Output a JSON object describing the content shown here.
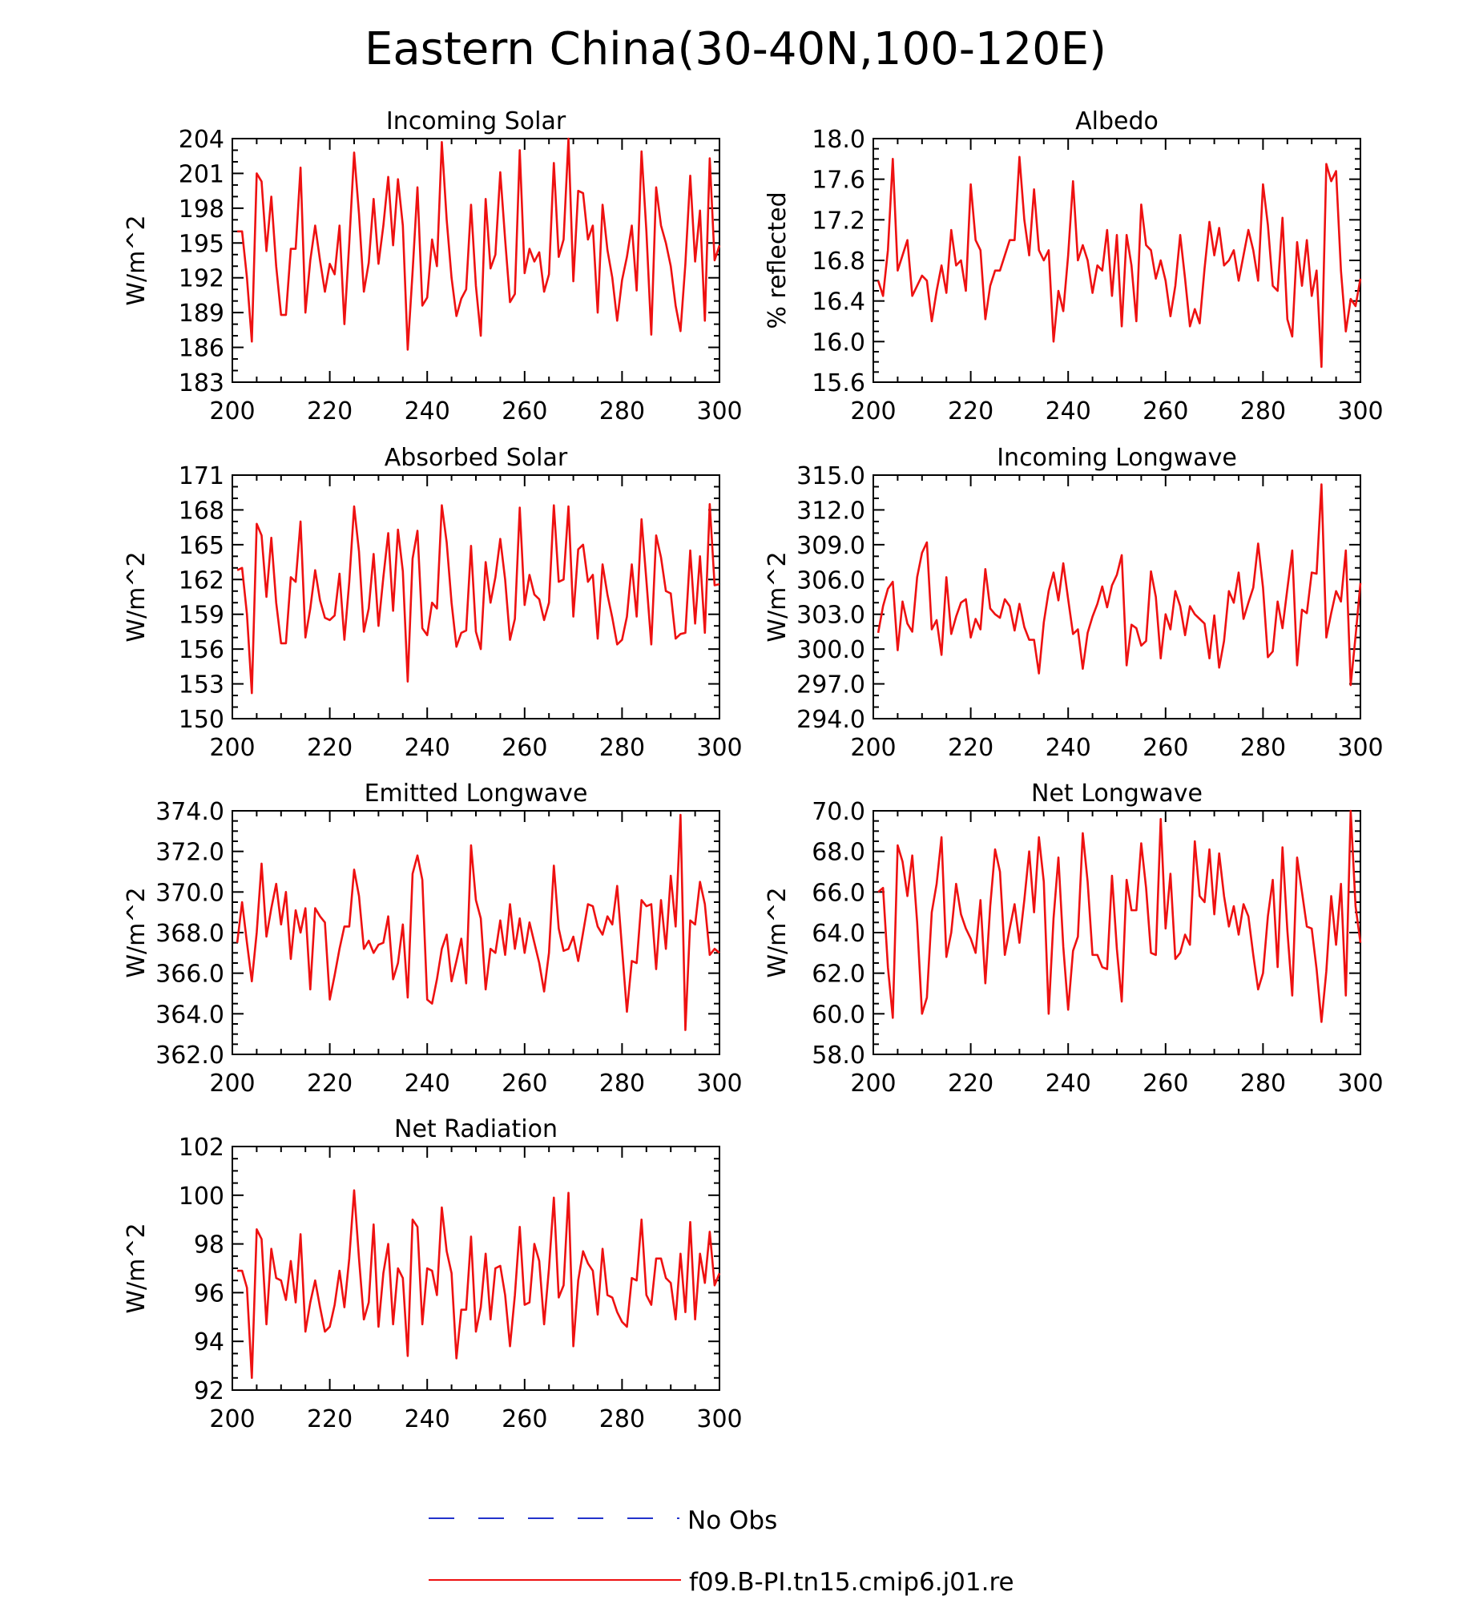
{
  "figure": {
    "title": "Eastern China(30-40N,100-120E)"
  },
  "legend": {
    "items": [
      {
        "label": "No Obs",
        "color": "#2233cc",
        "dash": true
      },
      {
        "label": "f09.B-PI.tn15.cmip6.j01.re",
        "color": "#ee1111",
        "dash": false
      }
    ]
  },
  "chart_data": [
    {
      "type": "line",
      "title": "Incoming Solar",
      "ylabel": "W/m^2",
      "xlim": [
        200,
        300
      ],
      "ylim": [
        183,
        204
      ],
      "xticks": [
        200,
        220,
        240,
        260,
        280,
        300
      ],
      "yticks": [
        183,
        186,
        189,
        192,
        195,
        198,
        201,
        204
      ],
      "ytick_labels": [
        "183",
        "186",
        "189",
        "192",
        "195",
        "198",
        "201",
        "204"
      ],
      "x_start": 201,
      "series": [
        {
          "color": "#ee1111",
          "values": [
            196.0,
            196.0,
            192.0,
            186.5,
            201.0,
            200.3,
            194.3,
            199.0,
            193.0,
            188.8,
            188.8,
            194.5,
            194.5,
            201.5,
            189.0,
            193.5,
            196.5,
            193.5,
            190.8,
            193.2,
            192.3,
            196.5,
            188.0,
            195.0,
            202.8,
            197.5,
            190.8,
            193.3,
            198.8,
            193.2,
            196.5,
            200.7,
            194.8,
            200.5,
            196.5,
            185.8,
            192.5,
            199.8,
            189.6,
            190.3,
            195.3,
            193.0,
            203.7,
            197.0,
            192.0,
            188.7,
            190.2,
            191.0,
            198.3,
            191.3,
            187.0,
            198.8,
            192.8,
            194.0,
            201.1,
            195.3,
            189.9,
            190.6,
            203.0,
            192.4,
            194.5,
            193.4,
            194.2,
            190.8,
            192.3,
            201.9,
            193.8,
            195.3,
            204.0,
            191.7,
            199.5,
            199.3,
            195.3,
            196.5,
            189.0,
            198.3,
            194.4,
            192.0,
            188.3,
            191.8,
            193.8,
            196.5,
            190.9,
            202.9,
            196.0,
            187.1,
            199.8,
            196.5,
            195.0,
            193.0,
            189.6,
            187.4,
            193.2,
            200.8,
            193.4,
            197.8,
            188.3,
            202.3,
            193.5,
            194.8
          ]
        }
      ]
    },
    {
      "type": "line",
      "title": "Albedo",
      "ylabel": "% reflected",
      "xlim": [
        200,
        300
      ],
      "ylim": [
        15.6,
        18.0
      ],
      "xticks": [
        200,
        220,
        240,
        260,
        280,
        300
      ],
      "yticks": [
        15.6,
        16.0,
        16.4,
        16.8,
        17.2,
        17.6,
        18.0
      ],
      "ytick_labels": [
        "15.6",
        "16.0",
        "16.4",
        "16.8",
        "17.2",
        "17.6",
        "18.0"
      ],
      "x_start": 201,
      "series": [
        {
          "color": "#ee1111",
          "values": [
            16.6,
            16.45,
            16.9,
            17.8,
            16.7,
            16.85,
            17.0,
            16.45,
            16.55,
            16.65,
            16.6,
            16.2,
            16.5,
            16.75,
            16.48,
            17.1,
            16.75,
            16.8,
            16.5,
            17.55,
            17.0,
            16.9,
            16.22,
            16.55,
            16.7,
            16.7,
            16.85,
            17.0,
            17.0,
            17.82,
            17.2,
            16.85,
            17.5,
            16.9,
            16.8,
            16.9,
            16.0,
            16.5,
            16.3,
            16.85,
            17.58,
            16.8,
            16.95,
            16.8,
            16.48,
            16.75,
            16.7,
            17.1,
            16.45,
            17.05,
            16.15,
            17.05,
            16.75,
            16.2,
            17.35,
            16.95,
            16.9,
            16.62,
            16.8,
            16.6,
            16.25,
            16.55,
            17.05,
            16.62,
            16.15,
            16.32,
            16.18,
            16.72,
            17.18,
            16.85,
            17.12,
            16.75,
            16.8,
            16.9,
            16.6,
            16.85,
            17.1,
            16.9,
            16.6,
            17.55,
            17.15,
            16.55,
            16.5,
            17.22,
            16.22,
            16.05,
            16.98,
            16.55,
            17.0,
            16.45,
            16.7,
            15.75,
            17.75,
            17.58,
            17.68,
            16.7,
            16.1,
            16.42,
            16.35,
            16.62
          ]
        }
      ]
    },
    {
      "type": "line",
      "title": "Absorbed Solar",
      "ylabel": "W/m^2",
      "xlim": [
        200,
        300
      ],
      "ylim": [
        150,
        171
      ],
      "xticks": [
        200,
        220,
        240,
        260,
        280,
        300
      ],
      "yticks": [
        150,
        153,
        156,
        159,
        162,
        165,
        168,
        171
      ],
      "ytick_labels": [
        "150",
        "153",
        "156",
        "159",
        "162",
        "165",
        "168",
        "171"
      ],
      "x_start": 201,
      "series": [
        {
          "color": "#ee1111",
          "values": [
            162.8,
            163.0,
            159.0,
            152.2,
            166.8,
            165.8,
            160.5,
            165.6,
            160.0,
            156.5,
            156.5,
            162.2,
            161.8,
            167.0,
            157.0,
            159.5,
            162.8,
            160.2,
            158.7,
            158.5,
            158.9,
            162.5,
            156.8,
            161.8,
            168.3,
            164.4,
            157.5,
            159.5,
            164.2,
            158.0,
            162.2,
            166.0,
            159.3,
            166.3,
            162.7,
            153.2,
            163.8,
            166.2,
            157.8,
            157.2,
            160.0,
            159.5,
            168.4,
            165.2,
            160.0,
            156.2,
            157.4,
            157.6,
            164.9,
            157.5,
            156.0,
            163.5,
            160.0,
            162.2,
            165.5,
            162.0,
            156.8,
            158.6,
            168.2,
            159.8,
            162.4,
            160.7,
            160.3,
            158.5,
            160.0,
            168.4,
            161.8,
            162.0,
            168.3,
            158.8,
            164.6,
            165.0,
            161.8,
            162.4,
            156.9,
            163.3,
            160.7,
            158.7,
            156.4,
            156.8,
            158.8,
            163.3,
            158.8,
            167.2,
            161.9,
            156.4,
            165.8,
            163.9,
            161.0,
            160.8,
            156.9,
            157.3,
            157.4,
            164.5,
            158.2,
            164.0,
            157.4,
            168.5,
            161.5,
            161.6
          ]
        }
      ]
    },
    {
      "type": "line",
      "title": "Incoming Longwave",
      "ylabel": "W/m^2",
      "xlim": [
        200,
        300
      ],
      "ylim": [
        294,
        315
      ],
      "xticks": [
        200,
        220,
        240,
        260,
        280,
        300
      ],
      "yticks": [
        294,
        297,
        300,
        303,
        306,
        309,
        312,
        315
      ],
      "ytick_labels": [
        "294.0",
        "297.0",
        "300.0",
        "303.0",
        "306.0",
        "309.0",
        "312.0",
        "315.0"
      ],
      "x_start": 201,
      "series": [
        {
          "color": "#ee1111",
          "values": [
            301.4,
            303.7,
            305.2,
            305.8,
            299.9,
            304.1,
            302.2,
            301.5,
            306.2,
            308.3,
            309.2,
            301.7,
            302.5,
            299.5,
            306.2,
            301.3,
            302.8,
            304.0,
            304.3,
            301.0,
            302.6,
            301.7,
            306.9,
            303.5,
            303.0,
            302.7,
            304.3,
            303.7,
            301.6,
            303.9,
            301.9,
            300.8,
            300.8,
            297.9,
            302.3,
            305.0,
            306.6,
            304.2,
            307.4,
            304.3,
            301.3,
            301.7,
            298.3,
            301.4,
            302.8,
            303.9,
            305.4,
            303.6,
            305.5,
            306.4,
            308.1,
            298.6,
            302.1,
            301.8,
            300.3,
            300.7,
            306.7,
            304.5,
            299.2,
            303.0,
            301.7,
            305.0,
            303.7,
            301.2,
            303.7,
            303.0,
            302.6,
            302.2,
            299.2,
            302.9,
            298.4,
            300.7,
            305.0,
            304.0,
            306.6,
            302.6,
            304.0,
            305.3,
            309.1,
            305.3,
            299.3,
            299.8,
            304.1,
            301.8,
            305.2,
            308.5,
            298.6,
            303.4,
            303.1,
            306.6,
            306.5,
            314.2,
            301.0,
            303.1,
            305.0,
            304.1,
            308.5,
            296.9,
            301.1,
            305.7
          ]
        }
      ]
    },
    {
      "type": "line",
      "title": "Emitted Longwave",
      "ylabel": "W/m^2",
      "xlim": [
        200,
        300
      ],
      "ylim": [
        362,
        374
      ],
      "xticks": [
        200,
        220,
        240,
        260,
        280,
        300
      ],
      "yticks": [
        362,
        364,
        366,
        368,
        370,
        372,
        374
      ],
      "ytick_labels": [
        "362.0",
        "364.0",
        "366.0",
        "368.0",
        "370.0",
        "372.0",
        "374.0"
      ],
      "x_start": 201,
      "series": [
        {
          "color": "#ee1111",
          "values": [
            367.5,
            369.5,
            367.5,
            365.6,
            368.0,
            371.4,
            367.8,
            369.2,
            370.4,
            368.4,
            370.0,
            366.7,
            369.1,
            368.0,
            369.2,
            365.2,
            369.2,
            368.8,
            368.5,
            364.7,
            365.9,
            367.2,
            368.3,
            368.3,
            371.1,
            369.8,
            367.2,
            367.6,
            367.0,
            367.4,
            367.5,
            368.8,
            365.7,
            366.5,
            368.4,
            364.8,
            370.9,
            371.8,
            370.6,
            364.7,
            364.5,
            365.7,
            367.2,
            367.9,
            365.6,
            366.6,
            367.7,
            365.5,
            372.3,
            369.6,
            368.7,
            365.2,
            367.2,
            367.0,
            368.6,
            366.9,
            369.4,
            367.2,
            368.7,
            367.0,
            368.5,
            367.5,
            366.5,
            365.1,
            367.0,
            371.3,
            368.2,
            367.1,
            367.2,
            367.8,
            366.6,
            368.0,
            369.4,
            369.3,
            368.3,
            367.9,
            368.8,
            368.4,
            370.3,
            367.2,
            364.1,
            366.6,
            366.5,
            369.6,
            369.3,
            369.4,
            366.2,
            369.6,
            367.2,
            370.8,
            368.3,
            373.8,
            363.2,
            368.6,
            368.4,
            370.5,
            369.4,
            366.9,
            367.2,
            367.0
          ]
        }
      ]
    },
    {
      "type": "line",
      "title": "Net Longwave",
      "ylabel": "W/m^2",
      "xlim": [
        200,
        300
      ],
      "ylim": [
        58,
        70
      ],
      "xticks": [
        200,
        220,
        240,
        260,
        280,
        300
      ],
      "yticks": [
        58,
        60,
        62,
        64,
        66,
        68,
        70
      ],
      "ytick_labels": [
        "58.0",
        "60.0",
        "62.0",
        "64.0",
        "66.0",
        "68.0",
        "70.0"
      ],
      "x_start": 201,
      "series": [
        {
          "color": "#ee1111",
          "values": [
            66.0,
            66.2,
            62.3,
            59.8,
            68.3,
            67.5,
            65.8,
            67.8,
            64.5,
            60.0,
            60.8,
            65.0,
            66.4,
            68.7,
            62.8,
            64.0,
            66.4,
            64.9,
            64.2,
            63.7,
            63.0,
            65.6,
            61.5,
            65.3,
            68.1,
            67.0,
            62.9,
            64.2,
            65.4,
            63.5,
            65.6,
            68.0,
            65.0,
            68.7,
            66.5,
            60.0,
            64.7,
            67.7,
            63.3,
            60.2,
            63.1,
            63.8,
            68.9,
            66.5,
            62.9,
            62.9,
            62.3,
            62.2,
            66.8,
            63.2,
            60.6,
            66.6,
            65.1,
            65.1,
            68.4,
            66.2,
            63.0,
            62.9,
            69.6,
            64.2,
            66.9,
            62.7,
            63.0,
            63.9,
            63.4,
            68.5,
            65.8,
            65.5,
            68.1,
            64.9,
            67.9,
            65.8,
            64.3,
            65.3,
            63.9,
            65.4,
            64.8,
            62.9,
            61.2,
            62.0,
            64.8,
            66.6,
            62.3,
            68.2,
            64.1,
            60.9,
            67.7,
            66.0,
            64.3,
            64.2,
            62.2,
            59.6,
            62.1,
            65.8,
            63.4,
            66.4,
            60.9,
            70.0,
            65.3,
            63.5
          ]
        }
      ]
    },
    {
      "type": "line",
      "title": "Net Radiation",
      "ylabel": "W/m^2",
      "xlim": [
        200,
        300
      ],
      "ylim": [
        92,
        102
      ],
      "xticks": [
        200,
        220,
        240,
        260,
        280,
        300
      ],
      "yticks": [
        92,
        94,
        96,
        98,
        100,
        102
      ],
      "ytick_labels": [
        "92",
        "94",
        "96",
        "98",
        "100",
        "102"
      ],
      "x_start": 201,
      "series": [
        {
          "color": "#ee1111",
          "values": [
            96.9,
            96.9,
            96.2,
            92.5,
            98.6,
            98.2,
            94.7,
            97.8,
            96.6,
            96.5,
            95.7,
            97.3,
            95.6,
            98.4,
            94.4,
            95.6,
            96.5,
            95.4,
            94.4,
            94.6,
            95.5,
            96.9,
            95.4,
            97.4,
            100.2,
            97.4,
            94.9,
            95.6,
            98.8,
            94.6,
            96.8,
            98.0,
            94.7,
            97.0,
            96.6,
            93.4,
            99.0,
            98.7,
            94.7,
            97.0,
            96.9,
            95.9,
            99.5,
            97.7,
            96.8,
            93.3,
            95.3,
            95.3,
            98.3,
            94.4,
            95.4,
            97.6,
            94.9,
            97.0,
            97.1,
            95.9,
            93.8,
            95.9,
            98.7,
            95.5,
            95.6,
            98.0,
            97.3,
            94.7,
            97.0,
            99.9,
            95.8,
            96.3,
            100.1,
            93.8,
            96.5,
            97.7,
            97.2,
            96.9,
            95.1,
            97.8,
            95.9,
            95.8,
            95.2,
            94.8,
            94.6,
            96.6,
            96.5,
            99.0,
            95.9,
            95.5,
            97.4,
            97.4,
            96.6,
            96.4,
            94.9,
            97.6,
            95.2,
            98.9,
            94.9,
            97.6,
            96.4,
            98.5,
            96.3,
            96.8
          ]
        }
      ]
    }
  ]
}
